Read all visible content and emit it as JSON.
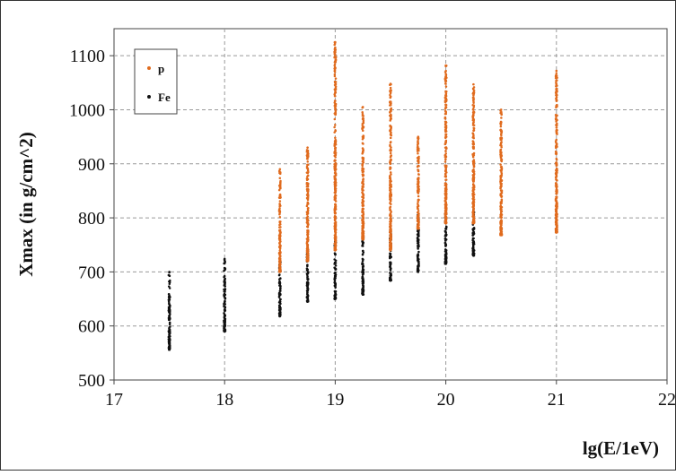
{
  "chart_data": {
    "type": "scatter",
    "title": "",
    "xlabel": "lg(E/1eV)",
    "ylabel": "Xmax (in g/cm^2)",
    "xlim": [
      17,
      22
    ],
    "ylim": [
      500,
      1150
    ],
    "x_ticks": [
      "17",
      "18",
      "19",
      "20",
      "21",
      "22"
    ],
    "y_ticks": [
      "500",
      "600",
      "700",
      "800",
      "900",
      "1000",
      "1100"
    ],
    "grid": true,
    "legend_position": "top-left",
    "series": [
      {
        "name": "p",
        "color": "#e06b1e",
        "columns": [
          {
            "x": 18.5,
            "y_min": 700,
            "y_max": 890
          },
          {
            "x": 18.75,
            "y_min": 720,
            "y_max": 930
          },
          {
            "x": 19.0,
            "y_min": 740,
            "y_max": 1125
          },
          {
            "x": 19.25,
            "y_min": 760,
            "y_max": 1005
          },
          {
            "x": 19.5,
            "y_min": 740,
            "y_max": 1048
          },
          {
            "x": 19.75,
            "y_min": 780,
            "y_max": 950
          },
          {
            "x": 20.0,
            "y_min": 790,
            "y_max": 1082
          },
          {
            "x": 20.25,
            "y_min": 790,
            "y_max": 1047
          },
          {
            "x": 20.5,
            "y_min": 768,
            "y_max": 1000
          },
          {
            "x": 21.0,
            "y_min": 773,
            "y_max": 1072
          }
        ]
      },
      {
        "name": "Fe",
        "color": "#111111",
        "columns": [
          {
            "x": 17.5,
            "y_min": 556,
            "y_max": 700
          },
          {
            "x": 18.0,
            "y_min": 590,
            "y_max": 724
          },
          {
            "x": 18.5,
            "y_min": 618,
            "y_max": 720
          },
          {
            "x": 18.75,
            "y_min": 645,
            "y_max": 745
          },
          {
            "x": 19.0,
            "y_min": 650,
            "y_max": 760
          },
          {
            "x": 19.25,
            "y_min": 658,
            "y_max": 770
          },
          {
            "x": 19.5,
            "y_min": 684,
            "y_max": 780
          },
          {
            "x": 19.75,
            "y_min": 700,
            "y_max": 805
          },
          {
            "x": 20.0,
            "y_min": 715,
            "y_max": 810
          },
          {
            "x": 20.25,
            "y_min": 730,
            "y_max": 815
          }
        ]
      }
    ]
  }
}
